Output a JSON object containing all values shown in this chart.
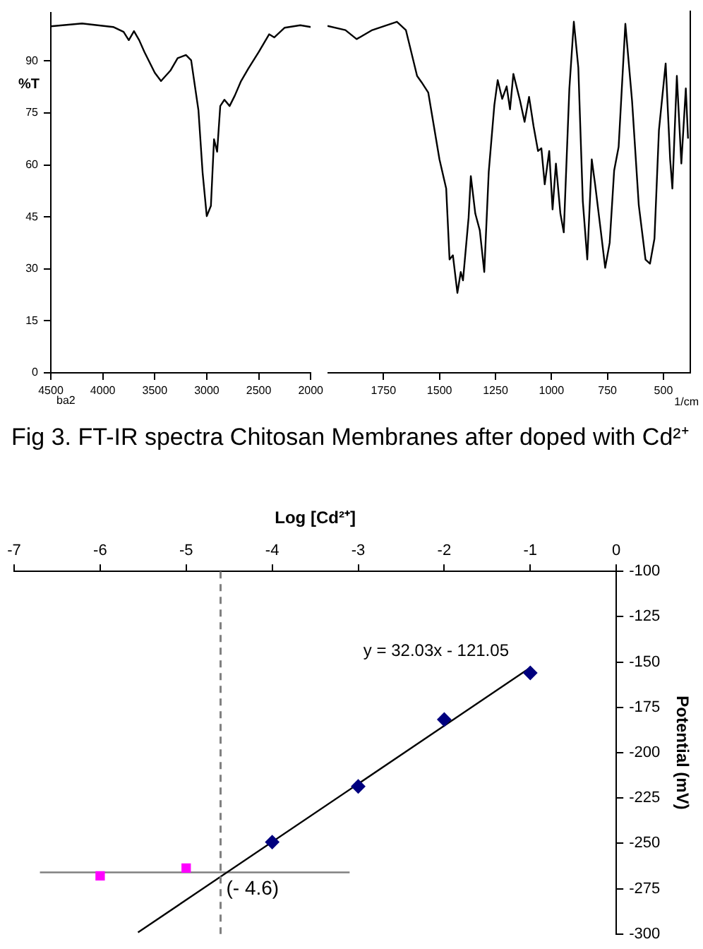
{
  "chart_data": [
    {
      "type": "line",
      "title": "Fig 3. FT-IR spectra Chitosan Membranes after doped with Cd²⁺",
      "ylabel": "%T",
      "annotations": [
        "ba2"
      ],
      "color": "#000000",
      "marker": "none",
      "grid": false,
      "legend": false,
      "x": [
        4500,
        4200,
        3900,
        3800,
        3750,
        3700,
        3650,
        3600,
        3500,
        3440,
        3350,
        3280,
        3200,
        3150,
        3080,
        3040,
        3000,
        2960,
        2930,
        2900,
        2870,
        2830,
        2780,
        2730,
        2670,
        2600,
        2500,
        2400,
        2350,
        2250,
        2100,
        2000
      ],
      "values": [
        100,
        100.8,
        99.8,
        98.4,
        96,
        98.6,
        96,
        92.6,
        86.6,
        84.2,
        87.2,
        90.8,
        91.7,
        90.2,
        75.8,
        57.8,
        45.2,
        48.2,
        67.4,
        63.8,
        77,
        78.8,
        77,
        80,
        84.2,
        87.8,
        92.6,
        97.7,
        96.8,
        99.6,
        100.3,
        99.8
      ],
      "xlim": [
        4500,
        2000
      ],
      "xticks": [
        4500,
        4000,
        3500,
        3000,
        2500,
        2000
      ],
      "ylim": [
        0,
        104
      ],
      "yticks": [
        0,
        15,
        30,
        45,
        60,
        75,
        90
      ]
    },
    {
      "type": "line",
      "xlabel": "1/cm",
      "color": "#000000",
      "marker": "none",
      "grid": false,
      "legend": false,
      "tick_labels": "x",
      "x": [
        2000,
        1920,
        1870,
        1800,
        1690,
        1650,
        1600,
        1580,
        1550,
        1500,
        1470,
        1455,
        1440,
        1420,
        1405,
        1395,
        1370,
        1360,
        1340,
        1320,
        1300,
        1280,
        1255,
        1240,
        1220,
        1200,
        1185,
        1170,
        1140,
        1120,
        1100,
        1080,
        1060,
        1045,
        1030,
        1010,
        995,
        980,
        960,
        945,
        920,
        900,
        880,
        860,
        840,
        820,
        805,
        780,
        760,
        740,
        720,
        700,
        670,
        640,
        610,
        580,
        560,
        540,
        520,
        490,
        470,
        460,
        440,
        420,
        400,
        390
      ],
      "values": [
        99.8,
        98.6,
        96,
        98.6,
        101,
        98.6,
        85.4,
        83.6,
        80.6,
        61.4,
        53,
        32.6,
        33.8,
        23,
        29,
        26.6,
        44.6,
        56.6,
        45.8,
        41,
        29,
        57.8,
        77,
        84.2,
        78.8,
        82.4,
        75.8,
        86,
        78.2,
        72.2,
        79.4,
        71,
        63.8,
        64.6,
        54.2,
        63.8,
        47,
        60.2,
        45.8,
        40.4,
        81.8,
        101,
        87.8,
        49.4,
        32.6,
        61.4,
        54.2,
        41,
        30.2,
        37.4,
        58.2,
        65,
        100.4,
        78.2,
        48.2,
        32.6,
        31.4,
        38.6,
        69.8,
        89,
        61.4,
        53,
        85.4,
        60.2,
        81.8,
        67.4
      ],
      "xlim": [
        2000,
        380
      ],
      "xticks": [
        1750,
        1500,
        1250,
        1000,
        750,
        500
      ],
      "ylim": [
        0,
        104
      ]
    },
    {
      "type": "scatter",
      "xlabel": "Log [Cd²⁺]",
      "ylabel": "Potential (mV)",
      "annotations": [
        "y = 32.03x - 121.05"
      ],
      "grid": false,
      "legend": false,
      "series": [
        {
          "type": "scatter",
          "color": "#00007f",
          "marker": "diamond",
          "x": [
            -4,
            -3,
            -2,
            -1
          ],
          "values": [
            -249.3,
            -218.6,
            -181.7,
            -156
          ]
        },
        {
          "type": "scatter",
          "color": "#ff00ff",
          "marker": "square",
          "x": [
            -6,
            -5
          ],
          "values": [
            -267.9,
            -263.6
          ]
        },
        {
          "type": "line",
          "color": "#000000",
          "marker": "none",
          "x": [
            -5.56,
            -1
          ],
          "values": [
            -299.1,
            -153.1
          ]
        },
        {
          "type": "line",
          "color": "#808080",
          "marker": "none",
          "x": [
            -6.7,
            -3.1
          ],
          "values": [
            -266,
            -266
          ]
        }
      ],
      "ref_lines": [
        {
          "axis": "x",
          "value": -4.6,
          "label": "(- 4.6)",
          "color": "#808080",
          "line_style": "dashed"
        }
      ],
      "xlim": [
        -7,
        0
      ],
      "xticks": [
        -7,
        -6,
        -5,
        -4,
        -3,
        -2,
        -1,
        0
      ],
      "ylim": [
        -300,
        -100
      ],
      "yticks": [
        -300,
        -275,
        -250,
        -225,
        -200,
        -175,
        -150,
        -125,
        -100
      ]
    }
  ]
}
